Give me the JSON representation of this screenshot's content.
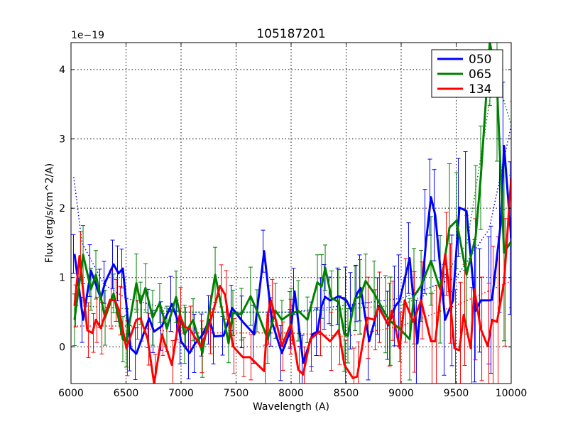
{
  "chart_data": {
    "type": "line",
    "title": "105187201",
    "xlabel": "Wavelength (A)",
    "ylabel": "Flux (erg/s/cm^2/A)",
    "offset_text": "1e−19",
    "xlim": [
      6000,
      10000
    ],
    "ylim": [
      -0.53,
      4.39
    ],
    "xticks": [
      6000,
      6500,
      7000,
      7500,
      8000,
      8500,
      9000,
      9500,
      10000
    ],
    "yticks": [
      0,
      1,
      2,
      3,
      4
    ],
    "grid": true,
    "legend_position": "top-right",
    "series": [
      {
        "name": "050",
        "color": "#0000ff",
        "x": [
          6032,
          6110,
          6181,
          6271,
          6310,
          6387,
          6432,
          6471,
          6542,
          6594,
          6710,
          6755,
          6826,
          6916,
          6968,
          7000,
          7077,
          7129,
          7194,
          7258,
          7303,
          7387,
          7465,
          7561,
          7665,
          7755,
          7826,
          7916,
          8000,
          8032,
          8110,
          8194,
          8239,
          8277,
          8310,
          8355,
          8432,
          8503,
          8548,
          8600,
          8632,
          8710,
          8794,
          8884,
          8948,
          8987,
          9077,
          9148,
          9226,
          9271,
          9310,
          9400,
          9471,
          9529,
          9594,
          9677,
          9723,
          9806,
          9826,
          9903,
          9935,
          10000
        ],
        "y": [
          1.34,
          0.39,
          1.1,
          0.7,
          0.93,
          1.19,
          1.06,
          1.13,
          -0.02,
          -0.1,
          0.41,
          0.22,
          0.3,
          0.62,
          0.39,
          0.08,
          -0.09,
          0.05,
          0.17,
          0.39,
          0.15,
          0.16,
          0.56,
          0.36,
          0.18,
          1.38,
          0.36,
          -0.09,
          0.26,
          0.8,
          -0.23,
          0.18,
          0.22,
          0.59,
          0.72,
          0.67,
          0.73,
          0.67,
          0.52,
          0.77,
          0.85,
          0.08,
          0.59,
          0.31,
          0.59,
          0.67,
          1.28,
          0.05,
          1.52,
          2.16,
          1.9,
          0.39,
          0.67,
          2.01,
          1.96,
          0.52,
          0.67,
          0.67,
          0.68,
          1.75,
          2.9,
          1.57
        ],
        "model": {
          "x": [
            6025,
            6100,
            6300,
            6500,
            7000,
            8000,
            9000,
            9500,
            9800,
            10000
          ],
          "y": [
            2.45,
            1.5,
            0.9,
            0.7,
            0.5,
            0.5,
            0.7,
            1.0,
            1.7,
            3.2
          ]
        }
      },
      {
        "name": "065",
        "color": "#008000",
        "x": [
          6032,
          6110,
          6181,
          6226,
          6310,
          6387,
          6471,
          6503,
          6594,
          6632,
          6677,
          6742,
          6806,
          6871,
          6955,
          7032,
          7110,
          7194,
          7310,
          7432,
          7471,
          7548,
          7632,
          7690,
          7787,
          7858,
          7916,
          7987,
          8000,
          8065,
          8148,
          8239,
          8277,
          8310,
          8368,
          8432,
          8484,
          8516,
          8581,
          8626,
          8677,
          8755,
          8858,
          8903,
          8987,
          9077,
          9116,
          9181,
          9271,
          9355,
          9439,
          9503,
          9594,
          9677,
          9723,
          9806,
          9871,
          9935,
          10000
        ],
        "y": [
          0.39,
          1.33,
          0.83,
          1.04,
          0.42,
          0.77,
          0.11,
          0.08,
          0.92,
          0.63,
          0.85,
          0.42,
          0.63,
          0.26,
          0.72,
          0.18,
          0.39,
          -0.09,
          1.04,
          0.05,
          0.49,
          0.47,
          0.73,
          0.52,
          0.11,
          0.52,
          0.39,
          0.47,
          0.47,
          0.52,
          0.39,
          0.93,
          0.87,
          1.14,
          0.7,
          0.65,
          0.18,
          0.16,
          0.7,
          0.72,
          0.95,
          0.77,
          0.47,
          0.37,
          0.26,
          0.11,
          0.73,
          0.88,
          1.24,
          0.83,
          1.72,
          1.82,
          1.04,
          1.59,
          2.44,
          4.4,
          3.77,
          1.36,
          1.52
        ],
        "model": {
          "x": [
            6025,
            6500,
            7000,
            8000,
            8500,
            9000,
            9300,
            9600,
            9850,
            10000
          ],
          "y": [
            0.6,
            0.55,
            0.5,
            0.5,
            0.55,
            0.6,
            0.8,
            1.5,
            4.0,
            3.2
          ]
        }
      },
      {
        "name": "134",
        "color": "#ff0000",
        "x": [
          6032,
          6077,
          6148,
          6194,
          6226,
          6271,
          6355,
          6400,
          6439,
          6503,
          6594,
          6632,
          6697,
          6755,
          6826,
          6916,
          6987,
          7032,
          7077,
          7181,
          7258,
          7355,
          7400,
          7471,
          7561,
          7626,
          7755,
          7787,
          7819,
          7916,
          7987,
          8000,
          8065,
          8110,
          8174,
          8258,
          8355,
          8432,
          8484,
          8561,
          8600,
          8690,
          8755,
          8794,
          8884,
          8916,
          8987,
          9032,
          9110,
          9181,
          9271,
          9310,
          9400,
          9439,
          9484,
          9529,
          9568,
          9632,
          9665,
          9723,
          9787,
          9826,
          9871,
          9935,
          10000
        ],
        "y": [
          0.59,
          1.31,
          0.24,
          0.2,
          0.39,
          0.27,
          0.68,
          0.67,
          0.52,
          -0.02,
          0.39,
          0.41,
          0.11,
          -0.53,
          0.18,
          -0.26,
          0.46,
          0.29,
          0.26,
          0,
          0.32,
          0.88,
          0.75,
          0.01,
          -0.15,
          -0.15,
          -0.35,
          0.46,
          0.67,
          0.01,
          0.29,
          0.32,
          -0.33,
          -0.4,
          0.11,
          0.22,
          0.08,
          0.24,
          -0.26,
          -0.45,
          -0.43,
          0.42,
          0.39,
          0.57,
          0.32,
          0.52,
          -0.02,
          0.67,
          0.36,
          0.67,
          0.08,
          0.08,
          1.34,
          0.77,
          -0.02,
          -0.05,
          0.46,
          -0.02,
          0.83,
          0.26,
          0.01,
          0.39,
          0.36,
          0.93,
          2.44
        ],
        "model": {
          "x": [
            6025,
            6500,
            7000,
            8000,
            8500,
            9000,
            9500,
            10000
          ],
          "y": [
            0.3,
            0.3,
            0.2,
            0.2,
            0.15,
            0.3,
            0.6,
            0.95
          ]
        }
      }
    ],
    "error_model": {
      "x": [
        6000,
        8000,
        9000,
        9500,
        10000
      ],
      "err": [
        0.35,
        0.35,
        0.55,
        0.8,
        1.1
      ]
    }
  }
}
